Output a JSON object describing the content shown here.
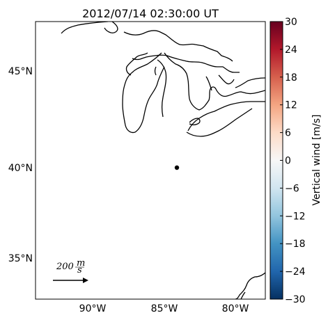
{
  "title": "2012/07/14 02:30:00 UT",
  "map": {
    "lat_labels": [
      "45°N",
      "40°N",
      "35°N"
    ],
    "lon_labels": [
      "90°W",
      "85°W",
      "80°W"
    ],
    "site": {
      "lat": 40.0,
      "lon": -84.0
    },
    "arrow_scale": {
      "value": "200",
      "unit_num": "m",
      "unit_den": "s"
    }
  },
  "colorbar": {
    "label": "Vertical wind [m/s]",
    "min": -30,
    "max": 30,
    "ticks": [
      "30",
      "24",
      "18",
      "12",
      "6",
      "0",
      "−6",
      "−12",
      "−18",
      "−24",
      "−30"
    ],
    "colormap": [
      "#67001f",
      "#b2182b",
      "#d6604d",
      "#f4a582",
      "#fddbc7",
      "#f7f7f7",
      "#d1e5f0",
      "#92c5de",
      "#4393c3",
      "#2166ac",
      "#053061"
    ]
  }
}
